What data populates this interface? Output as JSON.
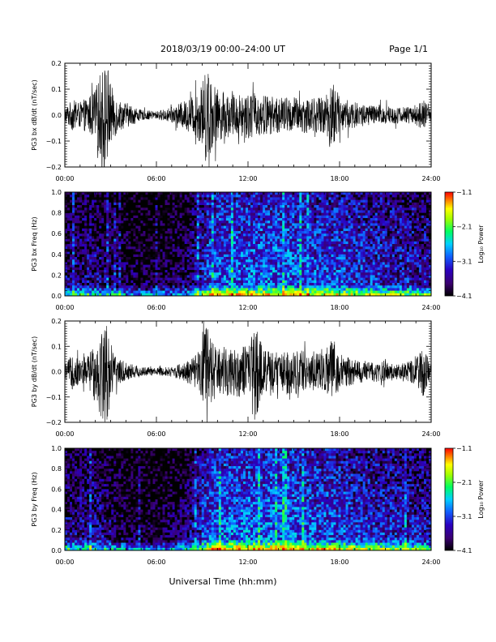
{
  "header": {
    "title": "2018/03/19  00:00–24:00 UT",
    "page": "Page 1/1"
  },
  "xaxis_title": "Universal Time (hh:mm)",
  "time_ticks": [
    "00:00",
    "06:00",
    "12:00",
    "18:00",
    "24:00"
  ],
  "chart_data": [
    {
      "type": "line",
      "panel": "bx-waveform",
      "ylabel": "PG3 bx dB/dt (nT/sec)",
      "xlim": [
        0,
        24
      ],
      "ylim": [
        -0.2,
        0.2
      ],
      "yticks": [
        "0.2",
        "0.1",
        "0.0",
        "−0.1",
        "−0.2"
      ],
      "color": "#000000",
      "envelope": {
        "hours": [
          0.0,
          0.5,
          1.0,
          1.5,
          2.0,
          2.5,
          2.8,
          3.0,
          3.5,
          4.0,
          5.0,
          6.0,
          7.0,
          8.0,
          8.5,
          9.0,
          9.3,
          9.6,
          10.0,
          11.0,
          12.0,
          13.0,
          14.0,
          15.0,
          16.0,
          17.0,
          17.5,
          18.0,
          19.0,
          20.0,
          21.0,
          22.0,
          23.0,
          23.5,
          24.0
        ],
        "amplitude": [
          0.03,
          0.06,
          0.05,
          0.07,
          0.1,
          0.2,
          0.2,
          0.12,
          0.06,
          0.05,
          0.02,
          0.015,
          0.03,
          0.06,
          0.08,
          0.12,
          0.2,
          0.14,
          0.1,
          0.08,
          0.09,
          0.08,
          0.07,
          0.07,
          0.07,
          0.07,
          0.15,
          0.07,
          0.05,
          0.04,
          0.04,
          0.03,
          0.04,
          0.06,
          0.02
        ]
      }
    },
    {
      "type": "heatmap",
      "panel": "bx-spectrogram",
      "ylabel": "PG3 bx Freq (Hz)",
      "xlim": [
        0,
        24
      ],
      "ylim": [
        0.0,
        1.0
      ],
      "yticks": [
        "1.0",
        "0.8",
        "0.6",
        "0.4",
        "0.2",
        "0.0"
      ],
      "zlabel": "Log₁₀ Power",
      "zlim": [
        -4.1,
        -1.1
      ],
      "zticks": [
        "−1.1",
        "−2.1",
        "−3.1",
        "−4.1"
      ],
      "activity": {
        "hours": [
          0.0,
          2.0,
          4.0,
          6.0,
          8.0,
          9.5,
          10.5,
          12.0,
          14.0,
          15.0,
          16.0,
          17.5,
          19.0,
          21.0,
          23.0,
          24.0
        ],
        "level": [
          0.25,
          0.3,
          0.15,
          0.1,
          0.2,
          0.55,
          0.6,
          0.6,
          0.62,
          0.6,
          0.55,
          0.55,
          0.5,
          0.45,
          0.4,
          0.35
        ]
      },
      "colormap": [
        "#000000",
        "#3a0070",
        "#2a00c0",
        "#1060ff",
        "#00d0ff",
        "#00ff60",
        "#a0ff00",
        "#ffff00",
        "#ff8000",
        "#ff0000"
      ]
    },
    {
      "type": "line",
      "panel": "by-waveform",
      "ylabel": "PG3 by dB/dt (nT/sec)",
      "xlim": [
        0,
        24
      ],
      "ylim": [
        -0.2,
        0.2
      ],
      "yticks": [
        "0.2",
        "0.1",
        "0.0",
        "−0.1",
        "−0.2"
      ],
      "color": "#000000",
      "envelope": {
        "hours": [
          0.0,
          0.5,
          1.0,
          1.5,
          2.0,
          2.5,
          2.8,
          3.0,
          3.5,
          4.0,
          5.0,
          6.0,
          7.0,
          8.0,
          8.5,
          9.0,
          9.3,
          9.6,
          10.0,
          11.0,
          12.0,
          12.4,
          13.0,
          14.0,
          15.0,
          16.0,
          17.0,
          17.5,
          18.0,
          19.0,
          20.0,
          21.0,
          22.0,
          23.0,
          23.5,
          24.0
        ],
        "amplitude": [
          0.03,
          0.07,
          0.05,
          0.07,
          0.12,
          0.2,
          0.2,
          0.1,
          0.05,
          0.04,
          0.02,
          0.015,
          0.02,
          0.04,
          0.06,
          0.1,
          0.2,
          0.13,
          0.09,
          0.1,
          0.1,
          0.2,
          0.09,
          0.08,
          0.09,
          0.08,
          0.07,
          0.15,
          0.07,
          0.05,
          0.04,
          0.04,
          0.03,
          0.05,
          0.1,
          0.02
        ]
      }
    },
    {
      "type": "heatmap",
      "panel": "by-spectrogram",
      "ylabel": "PG3 by Freq (Hz)",
      "xlim": [
        0,
        24
      ],
      "ylim": [
        0.0,
        1.0
      ],
      "yticks": [
        "1.0",
        "0.8",
        "0.6",
        "0.4",
        "0.2",
        "0.0"
      ],
      "zlabel": "Log₁₀ Power",
      "zlim": [
        -4.1,
        -1.1
      ],
      "zticks": [
        "−1.1",
        "−2.1",
        "−3.1",
        "−4.1"
      ],
      "activity": {
        "hours": [
          0.0,
          2.0,
          4.0,
          6.0,
          8.0,
          9.5,
          10.5,
          12.0,
          14.0,
          15.0,
          16.0,
          17.5,
          19.0,
          21.0,
          23.0,
          24.0
        ],
        "level": [
          0.28,
          0.32,
          0.15,
          0.1,
          0.22,
          0.6,
          0.62,
          0.62,
          0.64,
          0.62,
          0.56,
          0.56,
          0.5,
          0.45,
          0.4,
          0.35
        ]
      },
      "colormap": [
        "#000000",
        "#3a0070",
        "#2a00c0",
        "#1060ff",
        "#00d0ff",
        "#00ff60",
        "#a0ff00",
        "#ffff00",
        "#ff8000",
        "#ff0000"
      ]
    }
  ]
}
